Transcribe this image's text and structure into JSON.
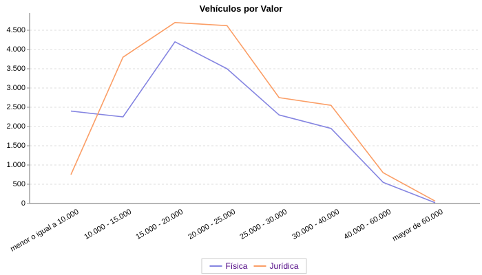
{
  "chart_data": {
    "type": "line",
    "title": "Vehículos por Valor",
    "xlabel": "",
    "ylabel": "",
    "categories": [
      "menor o igual a 10.000",
      "10.000 - 15.000",
      "15.000 - 20.000",
      "20.000 - 25.000",
      "25.000 - 30.000",
      "30.000 - 40.000",
      "40.000 - 60.000",
      "mayor de 60.000"
    ],
    "series": [
      {
        "name": "Física",
        "color": "#8585e1",
        "values": [
          2400,
          2250,
          4200,
          3500,
          2300,
          1950,
          550,
          20
        ]
      },
      {
        "name": "Jurídica",
        "color": "#fb9e66",
        "values": [
          750,
          3800,
          4700,
          4620,
          2750,
          2550,
          800,
          60
        ]
      }
    ],
    "y_axis": {
      "ticks": [
        {
          "value": 0,
          "label": "0"
        },
        {
          "value": 500,
          "label": "500"
        },
        {
          "value": 1000,
          "label": "1.000"
        },
        {
          "value": 1500,
          "label": "1.500"
        },
        {
          "value": 2000,
          "label": "2.000"
        },
        {
          "value": 2500,
          "label": "2.500"
        },
        {
          "value": 3000,
          "label": "3.000"
        },
        {
          "value": 3500,
          "label": "3.500"
        },
        {
          "value": 4000,
          "label": "4.000"
        },
        {
          "value": 4500,
          "label": "4.500"
        }
      ],
      "ylim": [
        0,
        4950
      ]
    },
    "grid": "horizontal-dashed",
    "legend_position": "bottom-center",
    "colors": {
      "grid": "#dcdcdc",
      "axis": "#8c8c8c",
      "legend_text": "#4b0082",
      "title_text": "#000000"
    }
  }
}
